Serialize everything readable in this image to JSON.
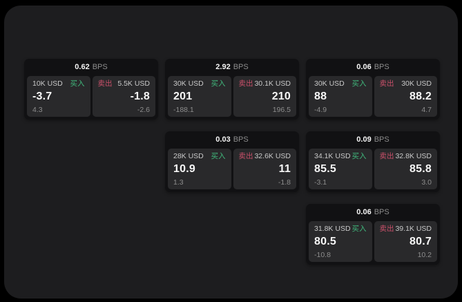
{
  "labels": {
    "unit": "BPS",
    "buy": "买入",
    "sell": "卖出"
  },
  "colors": {
    "buy_green": "#40b97c",
    "sell_red": "#c9506a",
    "panel_bg": "#1d1d1f",
    "card_bg": "#111113",
    "tile_bg": "#29292b",
    "page_bg": "#000000"
  },
  "cards": [
    {
      "col": 1,
      "row": 1,
      "bps": "0.62",
      "buy": {
        "amount": "10K USD",
        "value": "-3.7",
        "sub": "4.3"
      },
      "sell": {
        "amount": "5.5K USD",
        "value": "-1.8",
        "sub": "-2.6"
      }
    },
    {
      "col": 2,
      "row": 1,
      "bps": "2.92",
      "buy": {
        "amount": "30K USD",
        "value": "201",
        "sub": "-188.1"
      },
      "sell": {
        "amount": "30.1K USD",
        "value": "210",
        "sub": "196.5"
      }
    },
    {
      "col": 3,
      "row": 1,
      "bps": "0.06",
      "buy": {
        "amount": "30K USD",
        "value": "88",
        "sub": "-4.9"
      },
      "sell": {
        "amount": "30K USD",
        "value": "88.2",
        "sub": "4.7"
      }
    },
    {
      "col": 2,
      "row": 2,
      "bps": "0.03",
      "buy": {
        "amount": "28K USD",
        "value": "10.9",
        "sub": "1.3"
      },
      "sell": {
        "amount": "32.6K USD",
        "value": "11",
        "sub": "-1.8"
      }
    },
    {
      "col": 3,
      "row": 2,
      "bps": "0.09",
      "buy": {
        "amount": "34.1K USD",
        "value": "85.5",
        "sub": "-3.1"
      },
      "sell": {
        "amount": "32.8K USD",
        "value": "85.8",
        "sub": "3.0"
      }
    },
    {
      "col": 3,
      "row": 3,
      "bps": "0.06",
      "buy": {
        "amount": "31.8K USD",
        "value": "80.5",
        "sub": "-10.8"
      },
      "sell": {
        "amount": "39.1K USD",
        "value": "80.7",
        "sub": "10.2"
      }
    }
  ]
}
